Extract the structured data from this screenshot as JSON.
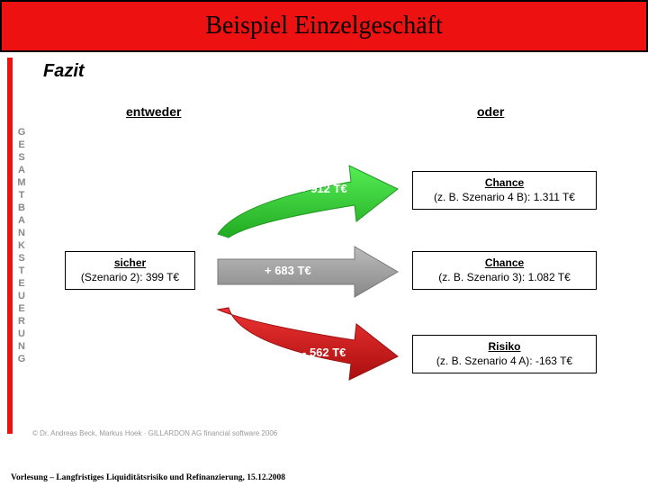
{
  "title": "Beispiel Einzelgeschäft",
  "vertical_label": "GESAMTBANKSTEUERUNG",
  "section_heading": "Fazit",
  "columns": {
    "left": "entweder",
    "right": "oder"
  },
  "left_box": {
    "label": "sicher",
    "detail": "(Szenario 2): 399 T€"
  },
  "arrows": [
    {
      "value": "+ 912 T€",
      "color": "#33cc33",
      "direction": "up"
    },
    {
      "value": "+ 683 T€",
      "color": "#999999",
      "direction": "flat"
    },
    {
      "value": "- 562 T€",
      "color": "#cc1414",
      "direction": "down"
    }
  ],
  "right_boxes": [
    {
      "label": "Chance",
      "detail": "(z. B. Szenario 4 B):  1.311 T€"
    },
    {
      "label": "Chance",
      "detail": "(z. B. Szenario 3):    1.082 T€"
    },
    {
      "label": "Risiko",
      "detail": "(z. B. Szenario 4 A):  -163 T€"
    }
  ],
  "copyright": "© Dr. Andreas Beck, Markus Hoek · GILLARDON AG financial software 2006",
  "footer": "Vorlesung – Langfristiges Liquiditätsrisiko und Refinanzierung, 15.12.2008",
  "style": {
    "title_bg": "#ee1111",
    "arrow_geom": {
      "shaft_height": 30,
      "head_width": 44,
      "head_height": 58
    }
  }
}
